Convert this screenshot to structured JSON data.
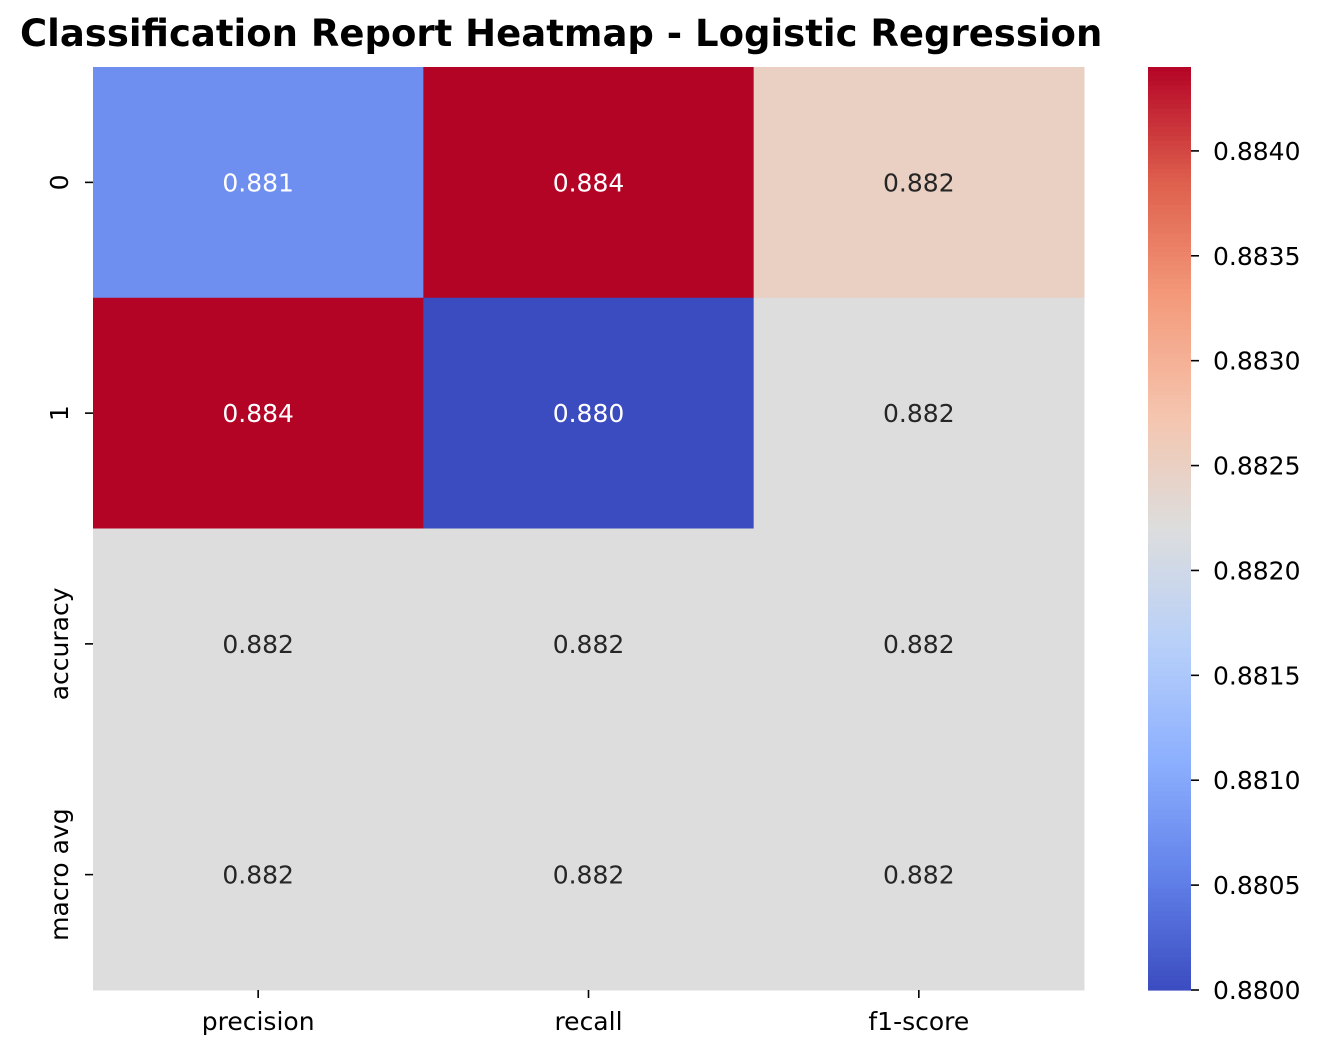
{
  "chart_data": {
    "type": "heatmap",
    "title": "Classification Report Heatmap - Logistic Regression",
    "xlabel": "",
    "ylabel": "",
    "columns": [
      "precision",
      "recall",
      "f1-score"
    ],
    "rows": [
      "0",
      "1",
      "accuracy",
      "macro avg"
    ],
    "values": [
      [
        0.8807,
        0.8844,
        0.8825
      ],
      [
        0.8844,
        0.88,
        0.8822
      ],
      [
        0.8822,
        0.8822,
        0.8822
      ],
      [
        0.8822,
        0.8822,
        0.8822
      ]
    ],
    "annotations": [
      [
        "0.881",
        "0.884",
        "0.882"
      ],
      [
        "0.884",
        "0.880",
        "0.882"
      ],
      [
        "0.882",
        "0.882",
        "0.882"
      ],
      [
        "0.882",
        "0.882",
        "0.882"
      ]
    ],
    "colormap": "coolwarm",
    "colorbar": {
      "min": 0.88,
      "max": 0.8844,
      "ticks": [
        0.88,
        0.8805,
        0.881,
        0.8815,
        0.882,
        0.8825,
        0.883,
        0.8835,
        0.884
      ],
      "tick_labels": [
        "0.8800",
        "0.8805",
        "0.8810",
        "0.8815",
        "0.8820",
        "0.8825",
        "0.8830",
        "0.8835",
        "0.8840"
      ]
    },
    "grid": false
  }
}
